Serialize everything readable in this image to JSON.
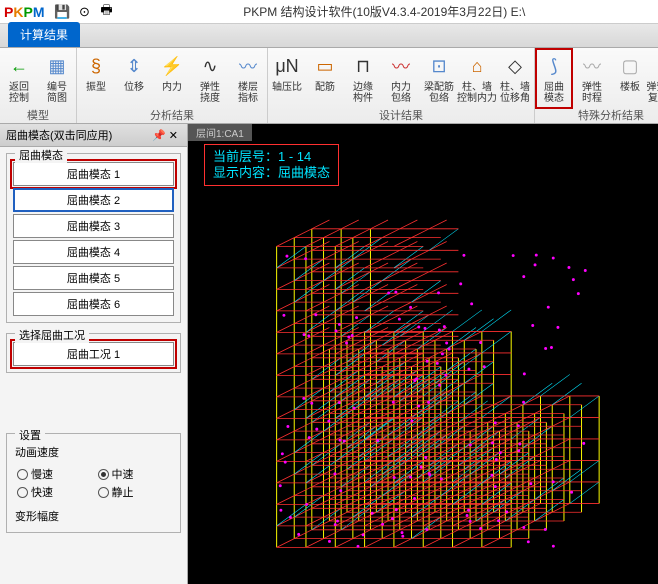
{
  "title": "PKPM 结构设计软件(10版V4.3.4-2019年3月22日) E:\\",
  "logo": {
    "p": "P",
    "k": "K",
    "p2": "P",
    "m": "M"
  },
  "toolbar_icons": [
    "save",
    "disk",
    "print"
  ],
  "active_tab": "计算结果",
  "ribbon": {
    "groups": [
      {
        "label": "模型",
        "items": [
          {
            "icon": "←",
            "color": "#009900",
            "label": "返回\n控制"
          },
          {
            "icon": "▦",
            "color": "#5588cc",
            "label": "编号\n简图"
          }
        ]
      },
      {
        "label": "分析结果",
        "items": [
          {
            "icon": "§",
            "color": "#cc6600",
            "label": "振型"
          },
          {
            "icon": "⇕",
            "color": "#5588cc",
            "label": "位移"
          },
          {
            "icon": "⚡",
            "color": "#cc3333",
            "label": "内力"
          },
          {
            "icon": "∿",
            "color": "#333",
            "label": "弹性\n挠度"
          },
          {
            "icon": "〰",
            "color": "#5588cc",
            "label": "楼层\n指标"
          }
        ]
      },
      {
        "label": "设计结果",
        "items": [
          {
            "icon": "μN",
            "color": "#333",
            "label": "轴压比"
          },
          {
            "icon": "▭",
            "color": "#cc6600",
            "label": "配筋"
          },
          {
            "icon": "⊓",
            "color": "#333",
            "label": "边缘\n构件"
          },
          {
            "icon": "〰",
            "color": "#cc3333",
            "label": "内力\n包络"
          },
          {
            "icon": "⊡",
            "color": "#5588cc",
            "label": "梁配筋\n包络"
          },
          {
            "icon": "⌂",
            "color": "#cc6600",
            "label": "柱、墙\n控制内力"
          },
          {
            "icon": "◇",
            "color": "#333",
            "label": "柱、墙\n位移角"
          }
        ]
      },
      {
        "label": "特殊分析结果",
        "items": [
          {
            "icon": "⟆",
            "color": "#5588cc",
            "label": "屈曲\n模态",
            "hl": true
          },
          {
            "icon": "〰",
            "color": "#aaa",
            "label": "弹性\n时程"
          },
          {
            "icon": "▢",
            "color": "#aaa",
            "label": "楼板"
          },
          {
            "icon": "≋",
            "color": "#aaa",
            "label": "弹簧-阻尼\n复合支座"
          }
        ]
      }
    ]
  },
  "sidepanel": {
    "title": "屈曲模态(双击同应用)",
    "group1": {
      "title": "屈曲模态",
      "items": [
        "屈曲模态 1",
        "屈曲模态 2",
        "屈曲模态 3",
        "屈曲模态 4",
        "屈曲模态 5",
        "屈曲模态 6"
      ],
      "hl": 0,
      "sel": 1
    },
    "group2": {
      "title": "选择屈曲工况",
      "items": [
        "屈曲工况 1"
      ],
      "hl": 0
    },
    "settings": {
      "title": "设置",
      "speed_label": "动画速度",
      "speeds": [
        "慢速",
        "中速",
        "快速",
        "静止"
      ],
      "selected": 1,
      "def_label": "变形幅度"
    }
  },
  "viewport": {
    "tab": "层间1:CA1",
    "overlay": {
      "line1": "当前层号：1 - 14",
      "line2": "显示内容：屈曲模态"
    },
    "colors": {
      "bg": "#000000",
      "col": "#ffff00",
      "beam": "#ff3030",
      "brace": "#00e5ff",
      "node": "#ff00ff"
    }
  }
}
